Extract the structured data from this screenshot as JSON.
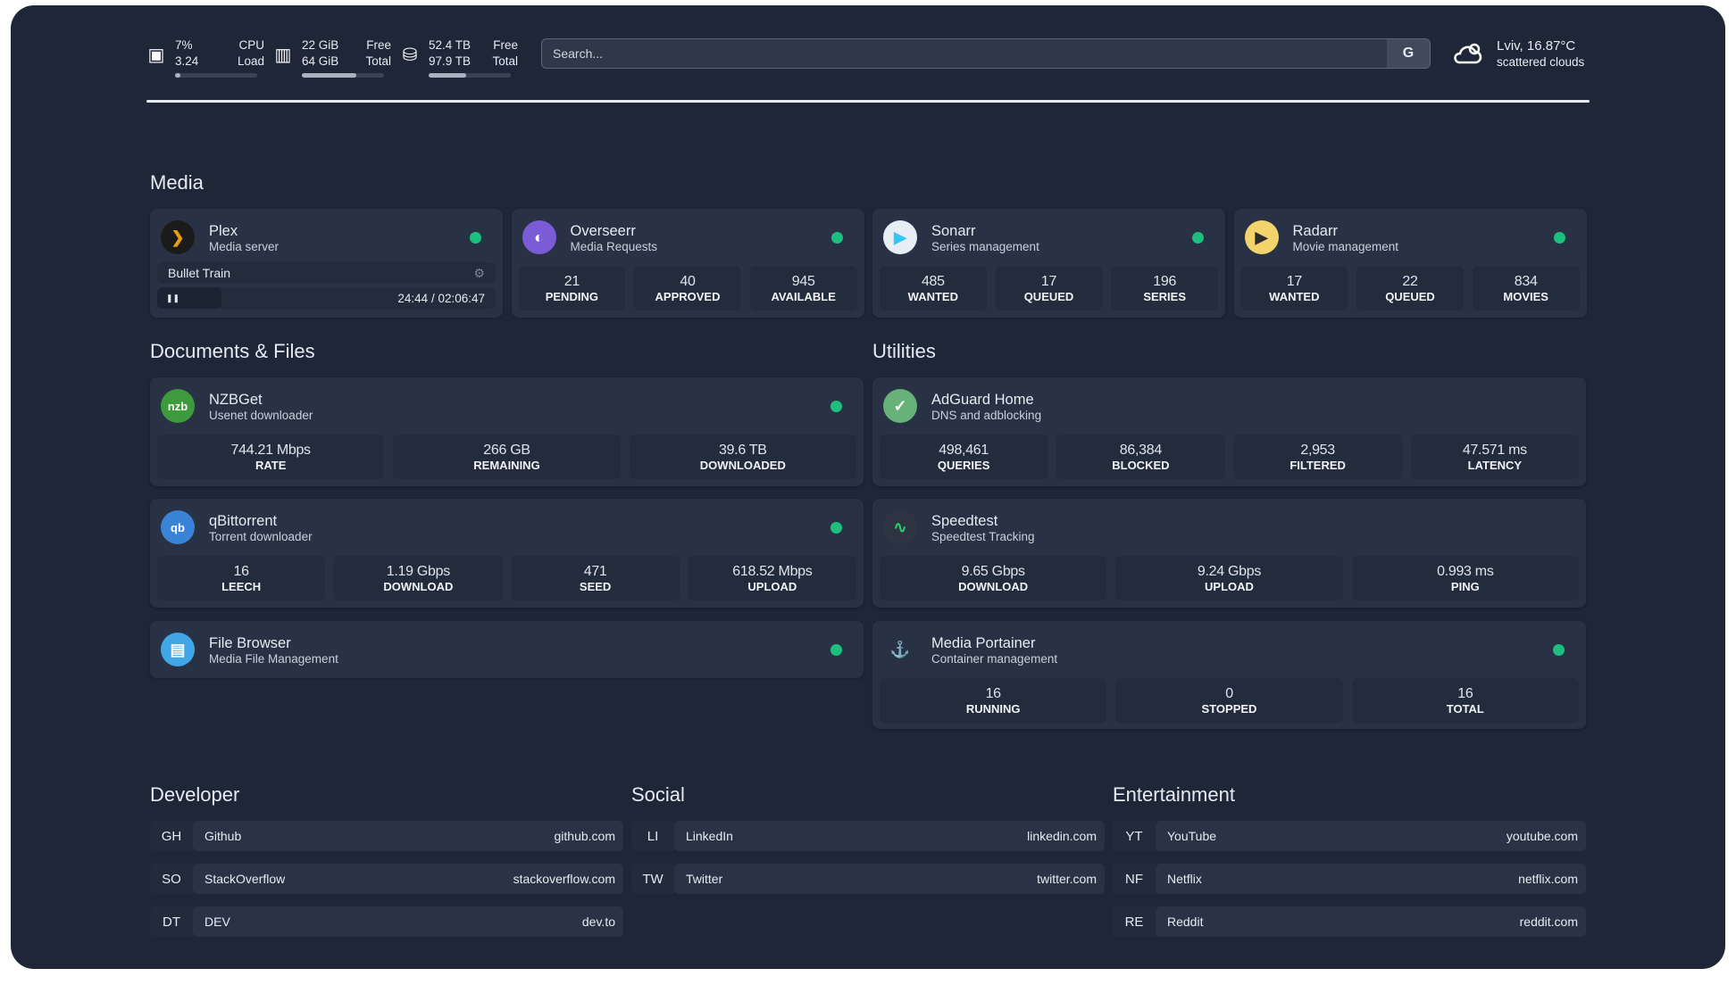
{
  "resources": {
    "cpu": {
      "icon": "cpu-icon",
      "value1": "7%",
      "value2": "3.24",
      "label1": "CPU",
      "label2": "Load",
      "percent": 7
    },
    "memory": {
      "icon": "memory-icon",
      "value1": "22 GiB",
      "value2": "64 GiB",
      "label1": "Free",
      "label2": "Total",
      "percent": 66
    },
    "disk": {
      "icon": "disk-icon",
      "value1": "52.4 TB",
      "value2": "97.9 TB",
      "label1": "Free",
      "label2": "Total",
      "percent": 46
    }
  },
  "search": {
    "placeholder": "Search...",
    "provider": "G"
  },
  "weather": {
    "icon": "cloud-icon",
    "title": "Lviv, 16.87°C",
    "desc": "scattered clouds"
  },
  "colors": {
    "background": "#1f2638",
    "card": "#283244",
    "status_ok": "#1dbf7f"
  },
  "sections": {
    "media": {
      "title": "Media",
      "cards": [
        {
          "name": "Plex",
          "sub": "Media server",
          "icon": "plex-icon",
          "status": "online",
          "now_playing": {
            "title": "Bullet Train",
            "time": "24:44 / 02:06:47",
            "progress": 0.195,
            "state": "paused"
          }
        },
        {
          "name": "Overseerr",
          "sub": "Media Requests",
          "icon": "overseerr-icon",
          "status": "online",
          "stats": [
            {
              "v": "21",
              "l": "PENDING"
            },
            {
              "v": "40",
              "l": "APPROVED"
            },
            {
              "v": "945",
              "l": "AVAILABLE"
            }
          ]
        },
        {
          "name": "Sonarr",
          "sub": "Series management",
          "icon": "sonarr-icon",
          "status": "online",
          "stats": [
            {
              "v": "485",
              "l": "WANTED"
            },
            {
              "v": "17",
              "l": "QUEUED"
            },
            {
              "v": "196",
              "l": "SERIES"
            }
          ]
        },
        {
          "name": "Radarr",
          "sub": "Movie management",
          "icon": "radarr-icon",
          "status": "online",
          "stats": [
            {
              "v": "17",
              "l": "WANTED"
            },
            {
              "v": "22",
              "l": "QUEUED"
            },
            {
              "v": "834",
              "l": "MOVIES"
            }
          ]
        }
      ]
    },
    "docs": {
      "title": "Documents & Files",
      "cards": [
        {
          "name": "NZBGet",
          "sub": "Usenet downloader",
          "icon": "nzbget-icon",
          "status": "online",
          "stats": [
            {
              "v": "744.21 Mbps",
              "l": "RATE"
            },
            {
              "v": "266 GB",
              "l": "REMAINING"
            },
            {
              "v": "39.6 TB",
              "l": "DOWNLOADED"
            }
          ]
        },
        {
          "name": "qBittorrent",
          "sub": "Torrent downloader",
          "icon": "qbittorrent-icon",
          "status": "online",
          "stats": [
            {
              "v": "16",
              "l": "LEECH"
            },
            {
              "v": "1.19 Gbps",
              "l": "DOWNLOAD"
            },
            {
              "v": "471",
              "l": "SEED"
            },
            {
              "v": "618.52 Mbps",
              "l": "UPLOAD"
            }
          ]
        },
        {
          "name": "File Browser",
          "sub": "Media File Management",
          "icon": "file-browser-icon",
          "status": "online"
        }
      ]
    },
    "utilities": {
      "title": "Utilities",
      "cards": [
        {
          "name": "AdGuard Home",
          "sub": "DNS and adblocking",
          "icon": "adguard-icon",
          "stats": [
            {
              "v": "498,461",
              "l": "QUERIES"
            },
            {
              "v": "86,384",
              "l": "BLOCKED"
            },
            {
              "v": "2,953",
              "l": "FILTERED"
            },
            {
              "v": "47.571 ms",
              "l": "LATENCY"
            }
          ]
        },
        {
          "name": "Speedtest",
          "sub": "Speedtest Tracking",
          "icon": "speedtest-icon",
          "stats": [
            {
              "v": "9.65 Gbps",
              "l": "DOWNLOAD"
            },
            {
              "v": "9.24 Gbps",
              "l": "UPLOAD"
            },
            {
              "v": "0.993 ms",
              "l": "PING"
            }
          ]
        },
        {
          "name": "Media Portainer",
          "sub": "Container management",
          "icon": "portainer-icon",
          "status": "online",
          "stats": [
            {
              "v": "16",
              "l": "RUNNING"
            },
            {
              "v": "0",
              "l": "STOPPED"
            },
            {
              "v": "16",
              "l": "TOTAL"
            }
          ]
        }
      ]
    }
  },
  "bookmarks": [
    {
      "title": "Developer",
      "items": [
        {
          "abbr": "GH",
          "name": "Github",
          "url": "github.com"
        },
        {
          "abbr": "SO",
          "name": "StackOverflow",
          "url": "stackoverflow.com"
        },
        {
          "abbr": "DT",
          "name": "DEV",
          "url": "dev.to"
        }
      ]
    },
    {
      "title": "Social",
      "items": [
        {
          "abbr": "LI",
          "name": "LinkedIn",
          "url": "linkedin.com"
        },
        {
          "abbr": "TW",
          "name": "Twitter",
          "url": "twitter.com"
        }
      ]
    },
    {
      "title": "Entertainment",
      "items": [
        {
          "abbr": "YT",
          "name": "YouTube",
          "url": "youtube.com"
        },
        {
          "abbr": "NF",
          "name": "Netflix",
          "url": "netflix.com"
        },
        {
          "abbr": "RE",
          "name": "Reddit",
          "url": "reddit.com"
        }
      ]
    }
  ]
}
